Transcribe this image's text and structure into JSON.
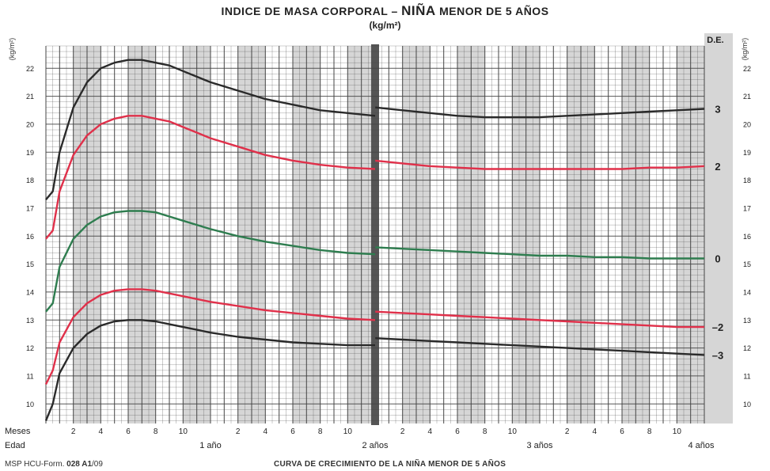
{
  "header": {
    "title_prefix": "INDICE DE MASA CORPORAL –",
    "title_bold": "NIÑA",
    "title_suffix": "MENOR DE 5 AÑOS",
    "unit": "(kg/m²)"
  },
  "labels": {
    "y_unit_left": "(kg/m²)",
    "y_unit_right": "(kg/m²)",
    "de_label": "D.E.",
    "meses": "Meses",
    "edad": "Edad"
  },
  "footer": {
    "left_prefix": "MSP HCU-Form.",
    "form_number": "028 A1",
    "form_year": "/09",
    "right": "CURVA DE CRECIMIENTO DE LA NIÑA MENOR DE 5 AÑOS"
  },
  "colors": {
    "band_gray": "#d6d6d6",
    "grid_line": "#444444",
    "curve_3": "#2a2a2a",
    "curve_2": "#e0304a",
    "curve_0": "#2e7d4f",
    "curve_m2": "#e0304a",
    "curve_m3": "#2a2a2a",
    "divider": "#555555"
  },
  "chart_data": {
    "type": "line",
    "xlabel": "Edad",
    "ylabel": "(kg/m²)",
    "xlim": [
      0,
      48
    ],
    "ylim": [
      9.3,
      22.8
    ],
    "y_ticks": [
      10,
      11,
      12,
      13,
      14,
      15,
      16,
      17,
      18,
      19,
      20,
      21,
      22
    ],
    "month_tick_labels": [
      {
        "m": 2,
        "label": "2"
      },
      {
        "m": 4,
        "label": "4"
      },
      {
        "m": 6,
        "label": "6"
      },
      {
        "m": 8,
        "label": "8"
      },
      {
        "m": 10,
        "label": "10"
      },
      {
        "m": 14,
        "label": "2"
      },
      {
        "m": 16,
        "label": "4"
      },
      {
        "m": 18,
        "label": "6"
      },
      {
        "m": 20,
        "label": "8"
      },
      {
        "m": 22,
        "label": "10"
      },
      {
        "m": 26,
        "label": "2"
      },
      {
        "m": 28,
        "label": "4"
      },
      {
        "m": 30,
        "label": "6"
      },
      {
        "m": 32,
        "label": "8"
      },
      {
        "m": 34,
        "label": "10"
      },
      {
        "m": 38,
        "label": "2"
      },
      {
        "m": 40,
        "label": "4"
      },
      {
        "m": 42,
        "label": "6"
      },
      {
        "m": 44,
        "label": "8"
      },
      {
        "m": 46,
        "label": "10"
      }
    ],
    "year_labels": [
      {
        "m": 12,
        "label": "1 año"
      },
      {
        "m": 24,
        "label": "2 años"
      },
      {
        "m": 36,
        "label": "3 años"
      },
      {
        "m": 48,
        "label": "4 años"
      }
    ],
    "grid": true,
    "series": [
      {
        "name": "3",
        "color_key": "curve_3",
        "x": [
          0,
          0.5,
          1,
          2,
          3,
          4,
          5,
          6,
          7,
          8,
          9,
          10,
          11,
          12,
          14,
          16,
          18,
          20,
          22,
          24,
          24.01,
          26,
          28,
          30,
          32,
          34,
          36,
          38,
          40,
          42,
          44,
          46,
          48
        ],
        "y": [
          17.3,
          17.6,
          19.0,
          20.6,
          21.5,
          22.0,
          22.2,
          22.3,
          22.3,
          22.2,
          22.1,
          21.9,
          21.7,
          21.5,
          21.2,
          20.9,
          20.7,
          20.5,
          20.4,
          20.3,
          20.6,
          20.5,
          20.4,
          20.3,
          20.25,
          20.25,
          20.25,
          20.3,
          20.35,
          20.4,
          20.45,
          20.5,
          20.55
        ]
      },
      {
        "name": "2",
        "color_key": "curve_2",
        "x": [
          0,
          0.5,
          1,
          2,
          3,
          4,
          5,
          6,
          7,
          8,
          9,
          10,
          11,
          12,
          14,
          16,
          18,
          20,
          22,
          24,
          24.01,
          26,
          28,
          30,
          32,
          34,
          36,
          38,
          40,
          42,
          44,
          46,
          48
        ],
        "y": [
          15.9,
          16.2,
          17.6,
          18.9,
          19.6,
          20.0,
          20.2,
          20.3,
          20.3,
          20.2,
          20.1,
          19.9,
          19.7,
          19.5,
          19.2,
          18.9,
          18.7,
          18.55,
          18.45,
          18.4,
          18.7,
          18.6,
          18.5,
          18.45,
          18.4,
          18.4,
          18.4,
          18.4,
          18.4,
          18.4,
          18.45,
          18.45,
          18.5
        ]
      },
      {
        "name": "0",
        "color_key": "curve_0",
        "x": [
          0,
          0.5,
          1,
          2,
          3,
          4,
          5,
          6,
          7,
          8,
          9,
          10,
          11,
          12,
          14,
          16,
          18,
          20,
          22,
          24,
          24.01,
          26,
          28,
          30,
          32,
          34,
          36,
          38,
          40,
          42,
          44,
          46,
          48
        ],
        "y": [
          13.3,
          13.6,
          14.9,
          15.9,
          16.4,
          16.7,
          16.85,
          16.9,
          16.9,
          16.85,
          16.7,
          16.55,
          16.4,
          16.25,
          16.0,
          15.8,
          15.65,
          15.5,
          15.4,
          15.35,
          15.6,
          15.55,
          15.5,
          15.45,
          15.4,
          15.35,
          15.3,
          15.3,
          15.25,
          15.25,
          15.2,
          15.2,
          15.2
        ]
      },
      {
        "name": "–2",
        "color_key": "curve_m2",
        "x": [
          0,
          0.5,
          1,
          2,
          3,
          4,
          5,
          6,
          7,
          8,
          9,
          10,
          11,
          12,
          14,
          16,
          18,
          20,
          22,
          24,
          24.01,
          26,
          28,
          30,
          32,
          34,
          36,
          38,
          40,
          42,
          44,
          46,
          48
        ],
        "y": [
          10.7,
          11.2,
          12.2,
          13.1,
          13.6,
          13.9,
          14.05,
          14.1,
          14.1,
          14.05,
          13.95,
          13.85,
          13.75,
          13.65,
          13.5,
          13.35,
          13.25,
          13.15,
          13.05,
          13.0,
          13.3,
          13.25,
          13.2,
          13.15,
          13.1,
          13.05,
          13.0,
          12.95,
          12.9,
          12.85,
          12.8,
          12.75,
          12.75
        ]
      },
      {
        "name": "–3",
        "color_key": "curve_m3",
        "x": [
          0,
          0.5,
          1,
          2,
          3,
          4,
          5,
          6,
          7,
          8,
          9,
          10,
          11,
          12,
          14,
          16,
          18,
          20,
          22,
          24,
          24.01,
          26,
          28,
          30,
          32,
          34,
          36,
          38,
          40,
          42,
          44,
          46,
          48
        ],
        "y": [
          9.4,
          10.0,
          11.1,
          12.0,
          12.5,
          12.8,
          12.95,
          13.0,
          13.0,
          12.95,
          12.85,
          12.75,
          12.65,
          12.55,
          12.4,
          12.3,
          12.2,
          12.15,
          12.1,
          12.1,
          12.35,
          12.3,
          12.25,
          12.2,
          12.15,
          12.1,
          12.05,
          12.0,
          11.95,
          11.9,
          11.85,
          11.8,
          11.75
        ]
      }
    ]
  }
}
